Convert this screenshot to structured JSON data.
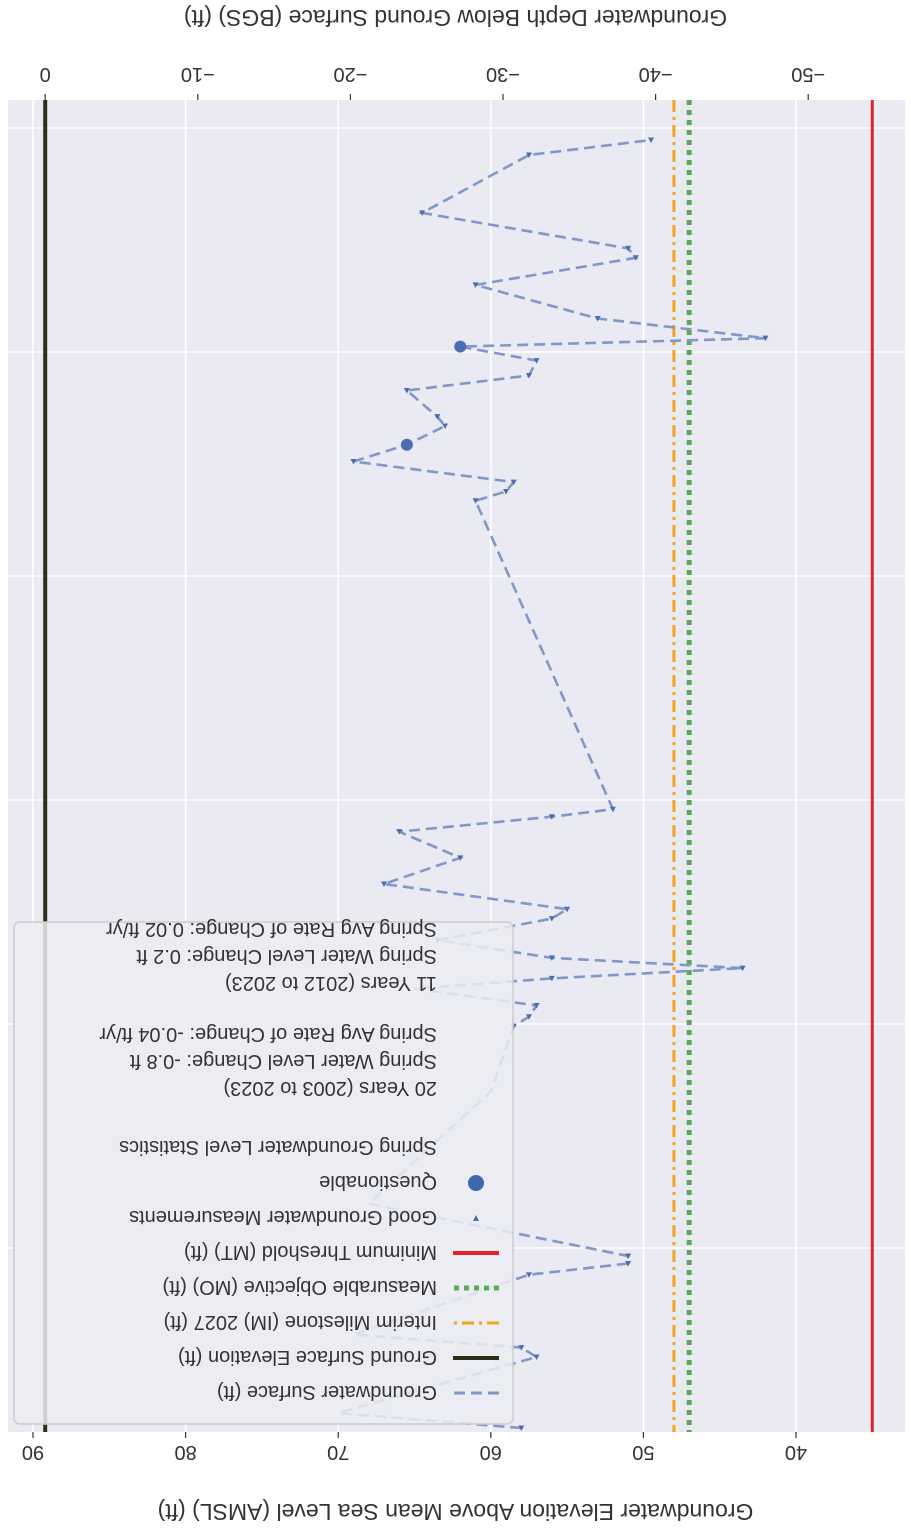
{
  "chart_data": {
    "type": "line",
    "orientation_note_rotated": true,
    "axes": {
      "primary_ylabel": "Groundwater Elevation Above Mean Sea Level (AMSL) (ft)",
      "secondary_ylabel": "Groundwater Depth Below Ground Surface (BGS) (ft)",
      "primary_ticks": [
        90,
        80,
        70,
        60,
        50,
        40
      ],
      "secondary_ticks": [
        "0",
        "−10",
        "−20",
        "−30",
        "−40",
        "−50"
      ],
      "ylim": [
        33,
        92
      ],
      "grid": true,
      "ground_surface_elevation": 89.2
    },
    "reference_lines": [
      {
        "name": "Ground Surface Elevation (ft)",
        "value": 89.2,
        "color": "#2e2f1a",
        "style": "solid"
      },
      {
        "name": "Interim Milestone (IM) 2027 (ft)",
        "value": 48.0,
        "color": "#f4a31f",
        "style": "dashdot"
      },
      {
        "name": "Measurable Objective (MO) (ft)",
        "value": 47.0,
        "color": "#5aaa55",
        "style": "dotted"
      },
      {
        "name": "Minimum Threshold (MT) (ft)",
        "value": 35.0,
        "color": "#e3242b",
        "style": "solid"
      }
    ],
    "series": [
      {
        "name": "Groundwater Surface (ft)",
        "color": "#7f98c8",
        "points": [
          {
            "t": 0.0,
            "y": 58.0,
            "m": "good"
          },
          {
            "t": 16.0,
            "y": 70.0,
            "m": "none"
          },
          {
            "t": 76.0,
            "y": 57.0,
            "m": "good"
          },
          {
            "t": 86.0,
            "y": 58.0,
            "m": "good"
          },
          {
            "t": 100.0,
            "y": 69.0,
            "m": "none"
          },
          {
            "t": 164.0,
            "y": 57.5,
            "m": "good"
          },
          {
            "t": 176.0,
            "y": 51.0,
            "m": "good"
          },
          {
            "t": 184.0,
            "y": 51.0,
            "m": "good"
          },
          {
            "t": 240.0,
            "y": 68.0,
            "m": "none"
          },
          {
            "t": 360.0,
            "y": 60.0,
            "m": "none"
          },
          {
            "t": 430.0,
            "y": 58.5,
            "m": "good"
          },
          {
            "t": 440.0,
            "y": 57.5,
            "m": "good"
          },
          {
            "t": 452.0,
            "y": 57.0,
            "m": "good"
          },
          {
            "t": 470.0,
            "y": 65.0,
            "m": "none"
          },
          {
            "t": 481.0,
            "y": 56.0,
            "m": "good"
          },
          {
            "t": 492.0,
            "y": 43.5,
            "m": "good"
          },
          {
            "t": 503.0,
            "y": 56.0,
            "m": "good"
          },
          {
            "t": 522.0,
            "y": 63.5,
            "m": "good"
          },
          {
            "t": 545.0,
            "y": 56.0,
            "m": "good"
          },
          {
            "t": 555.0,
            "y": 55.0,
            "m": "good"
          },
          {
            "t": 582.0,
            "y": 67.0,
            "m": "good"
          },
          {
            "t": 610.0,
            "y": 62.0,
            "m": "good"
          },
          {
            "t": 638.0,
            "y": 66.0,
            "m": "good"
          },
          {
            "t": 654.0,
            "y": 56.0,
            "m": "good"
          },
          {
            "t": 662.0,
            "y": 52.0,
            "m": "good"
          },
          {
            "t": 992.0,
            "y": 61.0,
            "m": "good"
          },
          {
            "t": 1002.0,
            "y": 59.0,
            "m": "good"
          },
          {
            "t": 1012.0,
            "y": 58.5,
            "m": "good"
          },
          {
            "t": 1034.0,
            "y": 69.0,
            "m": "good"
          },
          {
            "t": 1052.0,
            "y": 65.5,
            "m": "questionable"
          },
          {
            "t": 1072.0,
            "y": 63.0,
            "m": "good"
          },
          {
            "t": 1082.0,
            "y": 63.5,
            "m": "good"
          },
          {
            "t": 1110.0,
            "y": 65.5,
            "m": "good"
          },
          {
            "t": 1126.0,
            "y": 57.5,
            "m": "good"
          },
          {
            "t": 1142.0,
            "y": 57.0,
            "m": "good"
          },
          {
            "t": 1157.0,
            "y": 62.0,
            "m": "questionable"
          },
          {
            "t": 1166.0,
            "y": 42.0,
            "m": "good"
          },
          {
            "t": 1187.0,
            "y": 53.0,
            "m": "good"
          },
          {
            "t": 1223.0,
            "y": 61.0,
            "m": "good"
          },
          {
            "t": 1252.0,
            "y": 50.5,
            "m": "good"
          },
          {
            "t": 1262.0,
            "y": 51.0,
            "m": "good"
          },
          {
            "t": 1300.0,
            "y": 64.5,
            "m": "good"
          },
          {
            "t": 1362.0,
            "y": 57.5,
            "m": "good"
          },
          {
            "t": 1378.0,
            "y": 49.5,
            "m": "good"
          }
        ]
      }
    ],
    "legend": {
      "placement": "bottom-left (rotated view)",
      "entries": [
        {
          "label": "Groundwater Surface (ft)",
          "kind": "dashed-line",
          "color": "#7f98c8"
        },
        {
          "label": "Ground Surface Elevation (ft)",
          "kind": "solid-line",
          "color": "#2e2f1a"
        },
        {
          "label": "Interim Milestone (IM) 2027 (ft)",
          "kind": "dashdot-line",
          "color": "#f4a31f"
        },
        {
          "label": "Measurable Objective (MO) (ft)",
          "kind": "dotted-line",
          "color": "#5aaa55"
        },
        {
          "label": "Minimum Threshold (MT) (ft)",
          "kind": "solid-line",
          "color": "#e3242b"
        },
        {
          "label": "Good Groundwater Measurements",
          "kind": "small-triangle",
          "color": "#4a6fb0"
        },
        {
          "label": "Questionable",
          "kind": "dot",
          "color": "#3e66ae"
        },
        {
          "label": "Spring Groundwater Level Statistics",
          "kind": "none"
        }
      ],
      "stats": [
        {
          "heading": "20 Years (2003 to 2023)",
          "change": "Spring Water Level Change: -0.8 ft",
          "rate": "Spring Avg Rate of Change: -0.04 ft/yr"
        },
        {
          "heading": "11 Years (2012 to 2023)",
          "change": "Spring Water Level Change: 0.2 ft",
          "rate": "Spring Avg Rate of Change: 0.02 ft/yr"
        }
      ]
    }
  }
}
